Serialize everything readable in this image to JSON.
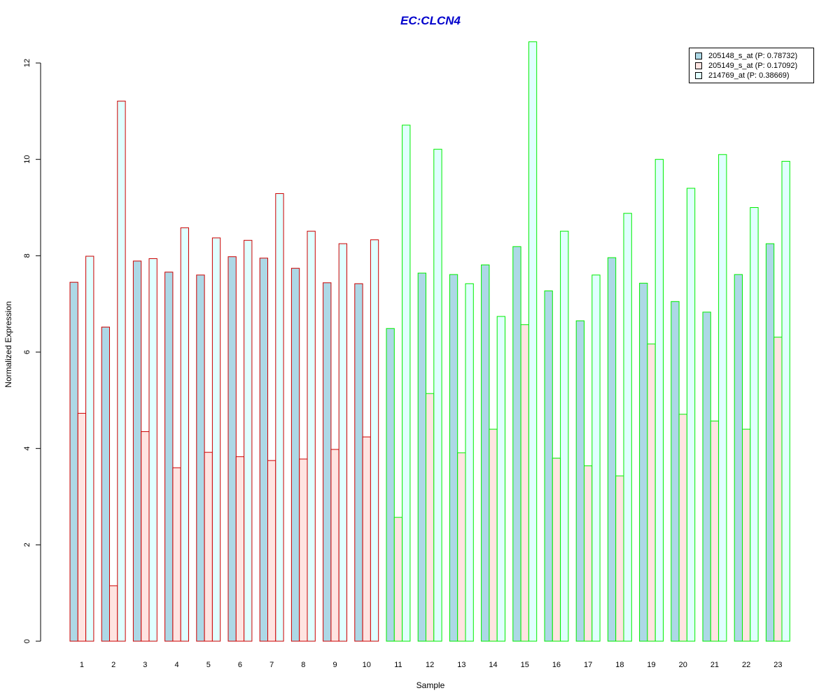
{
  "chart_data": {
    "type": "bar",
    "title": "EC:CLCN4",
    "xlabel": "Sample",
    "ylabel": "Normalized Expression",
    "ylim": [
      0,
      12
    ],
    "yticks": [
      0,
      2,
      4,
      6,
      8,
      10,
      12
    ],
    "categories": [
      "1",
      "2",
      "3",
      "4",
      "5",
      "6",
      "7",
      "8",
      "9",
      "10",
      "11",
      "12",
      "13",
      "14",
      "15",
      "16",
      "17",
      "18",
      "19",
      "20",
      "21",
      "22",
      "23"
    ],
    "group_border_colors": [
      "#cc0000",
      "#cc0000",
      "#cc0000",
      "#cc0000",
      "#cc0000",
      "#cc0000",
      "#cc0000",
      "#cc0000",
      "#cc0000",
      "#cc0000",
      "#00ee00",
      "#00ee00",
      "#00ee00",
      "#00ee00",
      "#00ee00",
      "#00ee00",
      "#00ee00",
      "#00ee00",
      "#00ee00",
      "#00ee00",
      "#00ee00",
      "#00ee00",
      "#00ee00"
    ],
    "series": [
      {
        "name": "205148_s_at (P: 0.78732)",
        "color": "#add8e6",
        "values": [
          7.45,
          6.52,
          7.89,
          7.66,
          7.6,
          7.98,
          7.95,
          7.74,
          7.44,
          7.42,
          6.49,
          7.64,
          7.61,
          7.81,
          8.19,
          7.27,
          6.65,
          7.96,
          7.43,
          7.05,
          6.83,
          7.61,
          8.25
        ]
      },
      {
        "name": "205149_s_at (P: 0.17092)",
        "color": "#ffe4e1",
        "values": [
          4.73,
          1.15,
          4.35,
          3.6,
          3.92,
          3.83,
          3.75,
          3.78,
          3.98,
          4.24,
          2.57,
          5.14,
          3.91,
          4.4,
          6.57,
          3.8,
          3.64,
          3.43,
          6.17,
          4.71,
          4.57,
          4.4,
          6.31
        ]
      },
      {
        "name": "214769_at (P: 0.38669)",
        "color": "#e0ffff",
        "values": [
          7.99,
          11.21,
          7.94,
          8.58,
          8.37,
          8.32,
          9.29,
          8.51,
          8.25,
          8.33,
          10.71,
          10.21,
          7.42,
          6.74,
          12.44,
          8.51,
          7.6,
          8.88,
          10.0,
          9.4,
          10.1,
          9.0,
          9.96
        ]
      }
    ],
    "legend_position": "top-right",
    "grid": false
  }
}
